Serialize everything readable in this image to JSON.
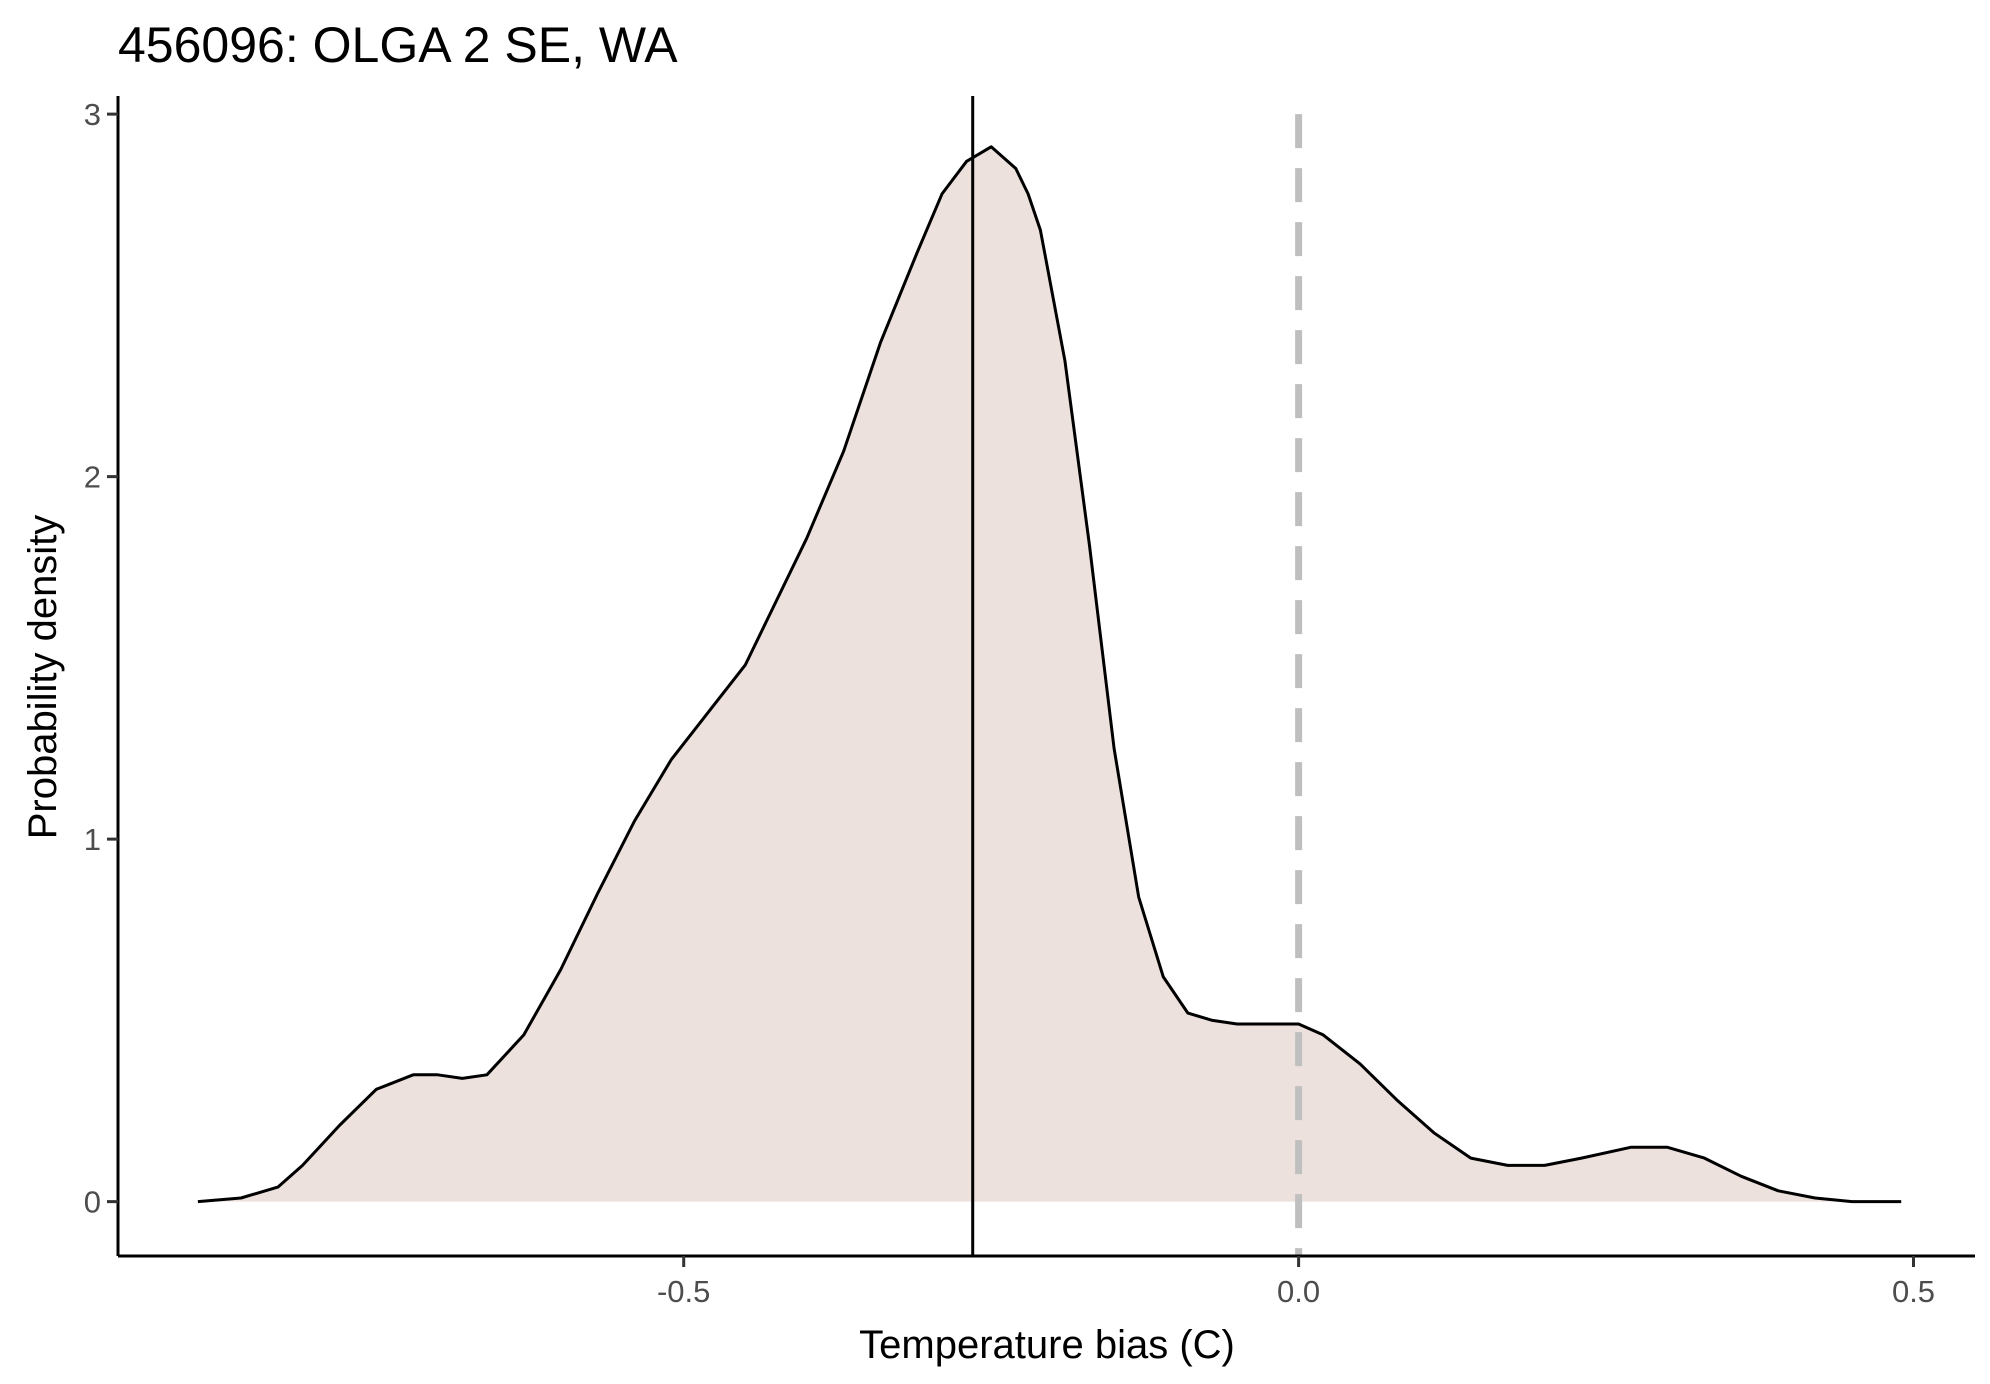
{
  "chart_data": {
    "type": "area",
    "title": "456096: OLGA 2 SE, WA",
    "xlabel": "Temperature bias (C)",
    "ylabel": "Probability density",
    "xlim": [
      -0.96,
      0.55
    ],
    "ylim": [
      -0.15,
      3.05
    ],
    "x_ticks": [
      -0.5,
      0.0,
      0.5
    ],
    "x_tick_labels": [
      "-0.5",
      "0.0",
      "0.5"
    ],
    "y_ticks": [
      0,
      1,
      2,
      3
    ],
    "y_tick_labels": [
      "0",
      "1",
      "2",
      "3"
    ],
    "grid": false,
    "fill_color": "#ece1dd",
    "line_color": "#000000",
    "mean_line_x": -0.265,
    "zero_line_x": 0.0,
    "zero_line_color": "#bfbfbf",
    "series": [
      {
        "x": [
          -0.895,
          -0.86,
          -0.83,
          -0.81,
          -0.78,
          -0.75,
          -0.72,
          -0.7,
          -0.68,
          -0.66,
          -0.63,
          -0.6,
          -0.57,
          -0.54,
          -0.51,
          -0.48,
          -0.45,
          -0.43,
          -0.4,
          -0.37,
          -0.34,
          -0.31,
          -0.29,
          -0.27,
          -0.25,
          -0.23,
          -0.22,
          -0.21,
          -0.19,
          -0.17,
          -0.15,
          -0.13,
          -0.11,
          -0.09,
          -0.07,
          -0.05,
          -0.03,
          -0.01,
          0.0,
          0.02,
          0.05,
          0.08,
          0.11,
          0.14,
          0.17,
          0.2,
          0.23,
          0.27,
          0.3,
          0.33,
          0.36,
          0.39,
          0.42,
          0.45,
          0.49
        ],
        "y": [
          0.0,
          0.01,
          0.04,
          0.1,
          0.21,
          0.31,
          0.35,
          0.35,
          0.34,
          0.35,
          0.46,
          0.64,
          0.85,
          1.05,
          1.22,
          1.35,
          1.48,
          1.62,
          1.83,
          2.07,
          2.37,
          2.62,
          2.78,
          2.87,
          2.91,
          2.85,
          2.78,
          2.68,
          2.32,
          1.81,
          1.25,
          0.84,
          0.62,
          0.52,
          0.5,
          0.49,
          0.49,
          0.49,
          0.49,
          0.46,
          0.38,
          0.28,
          0.19,
          0.12,
          0.1,
          0.1,
          0.12,
          0.15,
          0.15,
          0.12,
          0.07,
          0.03,
          0.01,
          0.0,
          0.0
        ]
      }
    ]
  }
}
